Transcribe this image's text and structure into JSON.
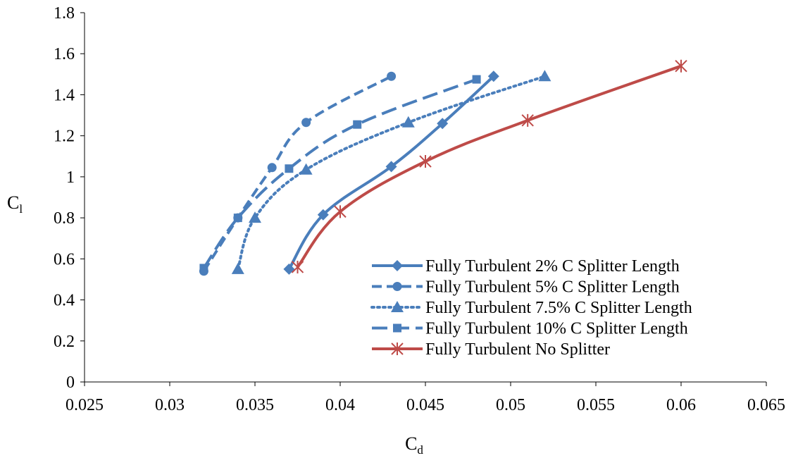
{
  "chart_data": {
    "type": "line",
    "xlabel": "C",
    "xlabel_sub": "d",
    "ylabel": "C",
    "ylabel_sub": "l",
    "xlim": [
      0.025,
      0.065
    ],
    "ylim": [
      0,
      1.8
    ],
    "xticks": [
      0.025,
      0.03,
      0.035,
      0.04,
      0.045,
      0.05,
      0.055,
      0.06,
      0.065
    ],
    "xtick_labels": [
      "0.025",
      "0.03",
      "0.035",
      "0.04",
      "0.045",
      "0.05",
      "0.055",
      "0.06",
      "0.065"
    ],
    "yticks": [
      0,
      0.2,
      0.4,
      0.6,
      0.8,
      1.0,
      1.2,
      1.4,
      1.6,
      1.8
    ],
    "ytick_labels": [
      "0",
      "0.2",
      "0.4",
      "0.6",
      "0.8",
      "1",
      "1.2",
      "1.4",
      "1.6",
      "1.8"
    ],
    "grid": false,
    "legend_position": "bottom-right",
    "series": [
      {
        "name": "Fully Turbulent 2% C Splitter Length",
        "color": "#4a7ebb",
        "line_style": "solid",
        "marker": "diamond",
        "x": [
          0.037,
          0.039,
          0.043,
          0.046,
          0.049
        ],
        "y": [
          0.55,
          0.815,
          1.05,
          1.26,
          1.49
        ]
      },
      {
        "name": "Fully Turbulent 5% C Splitter Length",
        "color": "#4a7ebb",
        "line_style": "dash",
        "marker": "circle",
        "x": [
          0.032,
          0.034,
          0.036,
          0.038,
          0.043
        ],
        "y": [
          0.54,
          0.8,
          1.045,
          1.265,
          1.49
        ]
      },
      {
        "name": "Fully Turbulent 7.5% C Splitter Length",
        "color": "#4a7ebb",
        "line_style": "dot",
        "marker": "triangle",
        "x": [
          0.034,
          0.035,
          0.038,
          0.044,
          0.052
        ],
        "y": [
          0.55,
          0.8,
          1.035,
          1.265,
          1.49
        ]
      },
      {
        "name": "Fully Turbulent 10% C Splitter Length",
        "color": "#4a7ebb",
        "line_style": "longdash",
        "marker": "square",
        "x": [
          0.032,
          0.034,
          0.037,
          0.041,
          0.048
        ],
        "y": [
          0.555,
          0.8,
          1.04,
          1.255,
          1.475
        ]
      },
      {
        "name": "Fully Turbulent No Splitter",
        "color": "#be4b48",
        "line_style": "solid",
        "marker": "asterisk",
        "x": [
          0.0375,
          0.04,
          0.045,
          0.051,
          0.06
        ],
        "y": [
          0.56,
          0.83,
          1.075,
          1.275,
          1.54
        ]
      }
    ]
  }
}
